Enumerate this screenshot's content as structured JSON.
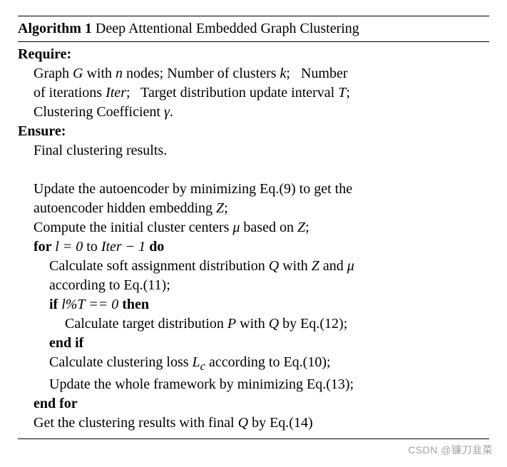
{
  "algorithm": {
    "number": "Algorithm 1",
    "title": "Deep Attentional Embedded Graph Clustering",
    "require_label": "Require:",
    "ensure_label": "Ensure:",
    "require_lines": [
      "Graph G with n nodes; Number of clusters k;   Number",
      "of iterations Iter;   Target distribution update interval T;",
      "Clustering Coefficient γ."
    ],
    "ensure_lines": [
      "Final clustering results."
    ],
    "body": {
      "l1a": "Update the autoencoder by minimizing Eq.(9) to get the",
      "l1b": "autoencoder hidden embedding Z;",
      "l2": "Compute the initial cluster centers μ based on Z;",
      "for_open_a": "for ",
      "for_open_b": "l = 0",
      "for_open_c": " to ",
      "for_open_d": "Iter − 1",
      "for_open_e": " do",
      "l3a": "Calculate soft assignment distribution Q with Z and μ",
      "l3b": "according to Eq.(11);",
      "if_open_a": "if ",
      "if_open_b": "l%T == 0",
      "if_open_c": " then",
      "l4": "Calculate target distribution P with Q by Eq.(12);",
      "if_close": "end if",
      "l5": "Calculate clustering loss L",
      "l5sub": "c",
      "l5b": " according to Eq.(10);",
      "l6": "Update the whole framework by minimizing Eq.(13);",
      "for_close": "end for",
      "l7": "Get the clustering results with final Q by Eq.(14)"
    }
  },
  "watermark": "CSDN @镰刀韭菜"
}
